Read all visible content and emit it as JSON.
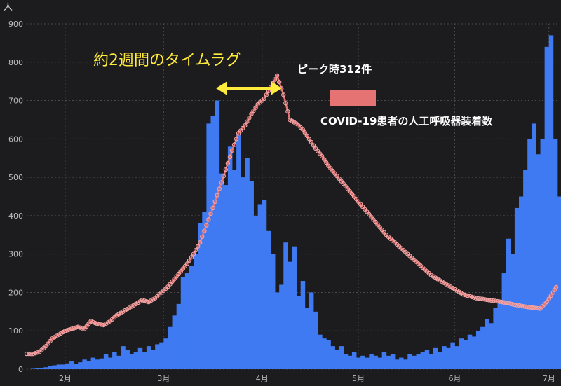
{
  "chart_data": {
    "type": "bar",
    "ylabel": "人",
    "ylim": [
      0,
      900
    ],
    "y_ticks": [
      0,
      100,
      200,
      300,
      400,
      500,
      600,
      700,
      800,
      900
    ],
    "x_ticks": [
      "2月",
      "3月",
      "4月",
      "5月",
      "6月",
      "7月"
    ],
    "grid": true,
    "bar_color": "#3f7af2",
    "line_color": "#e57373",
    "background": "#1c1c1e",
    "bars": [
      [
        0,
        0
      ],
      [
        2,
        1
      ],
      [
        4,
        2
      ],
      [
        6,
        3
      ],
      [
        8,
        5
      ],
      [
        10,
        8
      ],
      [
        12,
        10
      ],
      [
        14,
        12
      ],
      [
        16,
        12
      ],
      [
        18,
        15
      ],
      [
        20,
        20
      ],
      [
        22,
        14
      ],
      [
        24,
        18
      ],
      [
        26,
        25
      ],
      [
        28,
        20
      ],
      [
        30,
        30
      ],
      [
        32,
        25
      ],
      [
        34,
        28
      ],
      [
        36,
        40
      ],
      [
        38,
        30
      ],
      [
        40,
        45
      ],
      [
        42,
        35
      ],
      [
        44,
        60
      ],
      [
        46,
        50
      ],
      [
        48,
        40
      ],
      [
        50,
        45
      ],
      [
        52,
        55
      ],
      [
        54,
        45
      ],
      [
        56,
        60
      ],
      [
        58,
        50
      ],
      [
        60,
        65
      ],
      [
        62,
        70
      ],
      [
        64,
        80
      ],
      [
        66,
        110
      ],
      [
        68,
        140
      ],
      [
        70,
        170
      ],
      [
        72,
        240
      ],
      [
        74,
        250
      ],
      [
        76,
        270
      ],
      [
        78,
        300
      ],
      [
        80,
        380
      ],
      [
        82,
        410
      ],
      [
        84,
        640
      ],
      [
        86,
        660
      ],
      [
        88,
        700
      ],
      [
        90,
        510
      ],
      [
        92,
        480
      ],
      [
        94,
        580
      ],
      [
        96,
        520
      ],
      [
        98,
        610
      ],
      [
        100,
        500
      ],
      [
        102,
        550
      ],
      [
        104,
        490
      ],
      [
        106,
        400
      ],
      [
        108,
        430
      ],
      [
        110,
        440
      ],
      [
        112,
        360
      ],
      [
        114,
        300
      ],
      [
        116,
        200
      ],
      [
        118,
        220
      ],
      [
        120,
        330
      ],
      [
        122,
        280
      ],
      [
        124,
        320
      ],
      [
        126,
        190
      ],
      [
        128,
        230
      ],
      [
        130,
        160
      ],
      [
        132,
        200
      ],
      [
        134,
        150
      ],
      [
        136,
        90
      ],
      [
        138,
        80
      ],
      [
        140,
        75
      ],
      [
        142,
        60
      ],
      [
        144,
        50
      ],
      [
        146,
        60
      ],
      [
        148,
        40
      ],
      [
        150,
        35
      ],
      [
        152,
        45
      ],
      [
        154,
        30
      ],
      [
        156,
        35
      ],
      [
        158,
        30
      ],
      [
        160,
        40
      ],
      [
        162,
        35
      ],
      [
        164,
        30
      ],
      [
        166,
        45
      ],
      [
        168,
        35
      ],
      [
        170,
        40
      ],
      [
        172,
        25
      ],
      [
        174,
        30
      ],
      [
        176,
        25
      ],
      [
        178,
        40
      ],
      [
        180,
        35
      ],
      [
        182,
        40
      ],
      [
        184,
        45
      ],
      [
        186,
        50
      ],
      [
        188,
        40
      ],
      [
        190,
        55
      ],
      [
        192,
        45
      ],
      [
        194,
        60
      ],
      [
        196,
        55
      ],
      [
        198,
        70
      ],
      [
        200,
        60
      ],
      [
        202,
        80
      ],
      [
        204,
        75
      ],
      [
        206,
        90
      ],
      [
        208,
        85
      ],
      [
        210,
        100
      ],
      [
        212,
        110
      ],
      [
        214,
        130
      ],
      [
        216,
        120
      ],
      [
        218,
        160
      ],
      [
        220,
        180
      ],
      [
        222,
        250
      ],
      [
        224,
        340
      ],
      [
        226,
        300
      ],
      [
        228,
        420
      ],
      [
        230,
        450
      ],
      [
        232,
        520
      ],
      [
        234,
        600
      ],
      [
        236,
        640
      ],
      [
        238,
        560
      ],
      [
        240,
        600
      ],
      [
        242,
        840
      ],
      [
        244,
        870
      ],
      [
        246,
        600
      ],
      [
        248,
        450
      ]
    ],
    "line": [
      [
        0,
        40
      ],
      [
        3,
        40
      ],
      [
        6,
        45
      ],
      [
        9,
        60
      ],
      [
        12,
        80
      ],
      [
        15,
        90
      ],
      [
        18,
        100
      ],
      [
        21,
        105
      ],
      [
        24,
        110
      ],
      [
        27,
        105
      ],
      [
        30,
        125
      ],
      [
        33,
        118
      ],
      [
        36,
        115
      ],
      [
        39,
        125
      ],
      [
        42,
        140
      ],
      [
        45,
        150
      ],
      [
        48,
        160
      ],
      [
        51,
        170
      ],
      [
        54,
        180
      ],
      [
        57,
        175
      ],
      [
        60,
        185
      ],
      [
        63,
        200
      ],
      [
        66,
        215
      ],
      [
        69,
        235
      ],
      [
        72,
        255
      ],
      [
        75,
        275
      ],
      [
        78,
        300
      ],
      [
        81,
        330
      ],
      [
        84,
        375
      ],
      [
        87,
        420
      ],
      [
        90,
        470
      ],
      [
        93,
        520
      ],
      [
        96,
        570
      ],
      [
        99,
        615
      ],
      [
        102,
        635
      ],
      [
        105,
        665
      ],
      [
        108,
        690
      ],
      [
        111,
        705
      ],
      [
        114,
        735
      ],
      [
        117,
        765
      ],
      [
        120,
        715
      ],
      [
        123,
        650
      ],
      [
        126,
        640
      ],
      [
        129,
        625
      ],
      [
        132,
        600
      ],
      [
        135,
        575
      ],
      [
        138,
        555
      ],
      [
        141,
        530
      ],
      [
        144,
        510
      ],
      [
        147,
        490
      ],
      [
        150,
        470
      ],
      [
        153,
        450
      ],
      [
        156,
        430
      ],
      [
        159,
        410
      ],
      [
        162,
        390
      ],
      [
        165,
        370
      ],
      [
        168,
        350
      ],
      [
        171,
        335
      ],
      [
        174,
        320
      ],
      [
        177,
        305
      ],
      [
        180,
        290
      ],
      [
        183,
        275
      ],
      [
        186,
        260
      ],
      [
        189,
        245
      ],
      [
        192,
        235
      ],
      [
        195,
        225
      ],
      [
        198,
        215
      ],
      [
        201,
        205
      ],
      [
        204,
        195
      ],
      [
        207,
        190
      ],
      [
        210,
        185
      ],
      [
        213,
        183
      ],
      [
        216,
        180
      ],
      [
        219,
        178
      ],
      [
        222,
        175
      ],
      [
        225,
        172
      ],
      [
        228,
        168
      ],
      [
        231,
        165
      ],
      [
        234,
        162
      ],
      [
        237,
        160
      ],
      [
        240,
        158
      ],
      [
        243,
        175
      ],
      [
        246,
        200
      ],
      [
        248,
        220
      ]
    ],
    "annotations": {
      "lag_label": "約2週間のタイムラグ",
      "peak_label": "ピーク時312件",
      "legend_label": "COVID-19患者の人工呼吸器装着数"
    }
  }
}
